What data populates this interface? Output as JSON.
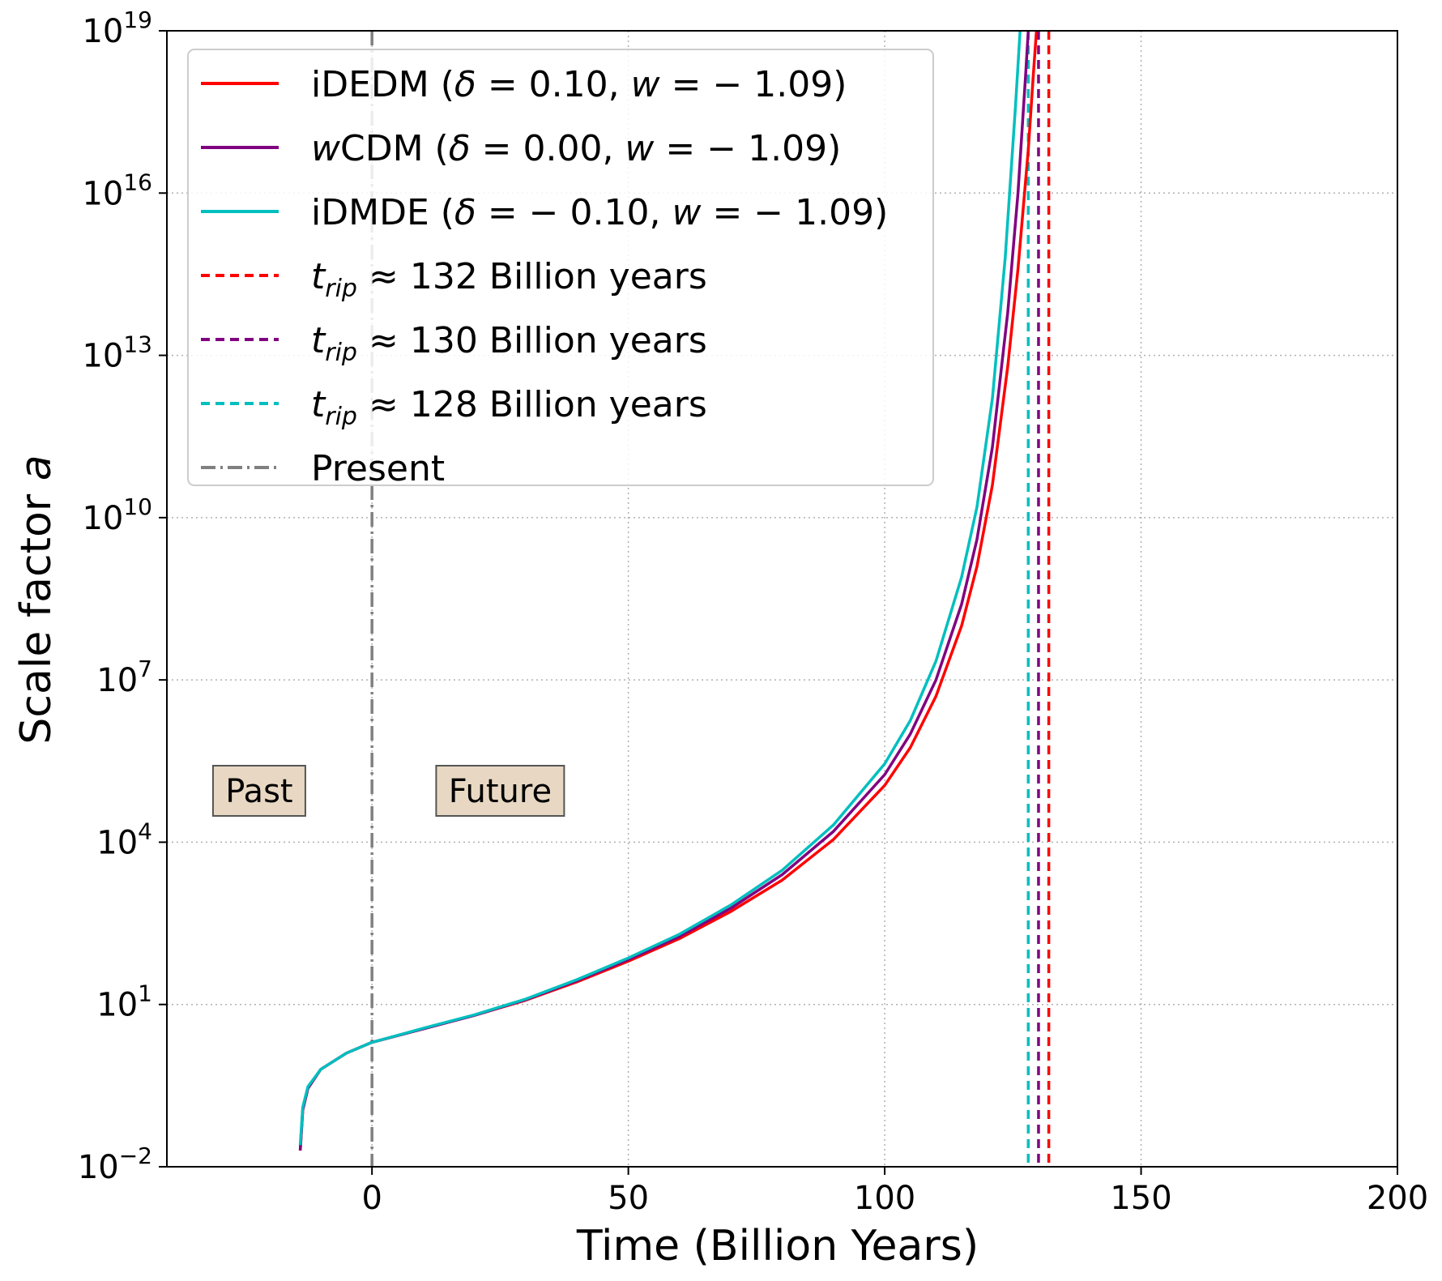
{
  "chart_data": {
    "type": "line",
    "xlabel": "Time (Billion Years)",
    "ylabel_prefix": "Scale factor ",
    "ylabel_var": "a",
    "xlim": [
      -40,
      200
    ],
    "ylim_log10": [
      -2,
      19
    ],
    "xticks": [
      0,
      50,
      100,
      150,
      200
    ],
    "xtick_labels": [
      "0",
      "50",
      "100",
      "150",
      "200"
    ],
    "yticks_log10": [
      -2,
      1,
      4,
      7,
      10,
      13,
      16,
      19
    ],
    "ytick_base": "10",
    "ytick_exponents": [
      "−2",
      "1",
      "4",
      "7",
      "10",
      "13",
      "16",
      "19"
    ],
    "grid": true,
    "legend_position": "upper-left",
    "series": [
      {
        "name": "iDEDM",
        "label_prefix": "iDEDM (",
        "delta_sym": "δ",
        "delta_text": " = 0.10, ",
        "w_sym": "w",
        "w_text": " = − 1.09)",
        "delta": 0.1,
        "w": -1.09,
        "color": "#ff0000",
        "points": [
          [
            -14,
            -1.7
          ],
          [
            -13.5,
            -0.95
          ],
          [
            -12.5,
            -0.55
          ],
          [
            -10,
            -0.2
          ],
          [
            -5,
            0.1
          ],
          [
            0,
            0.3
          ],
          [
            10,
            0.55
          ],
          [
            20,
            0.8
          ],
          [
            30,
            1.08
          ],
          [
            40,
            1.42
          ],
          [
            50,
            1.8
          ],
          [
            60,
            2.22
          ],
          [
            70,
            2.72
          ],
          [
            80,
            3.3
          ],
          [
            90,
            4.05
          ],
          [
            100,
            5.05
          ],
          [
            105,
            5.75
          ],
          [
            110,
            6.7
          ],
          [
            115,
            8.0
          ],
          [
            118,
            9.1
          ],
          [
            121,
            10.6
          ],
          [
            124,
            12.8
          ],
          [
            126,
            14.6
          ],
          [
            128,
            16.8
          ],
          [
            129,
            18.2
          ],
          [
            129.6,
            19
          ]
        ]
      },
      {
        "name": "wCDM",
        "label_prefix": "",
        "delta_sym": "δ",
        "delta_text": " = 0.00, ",
        "w_sym": "w",
        "w_text": " = − 1.09)",
        "label_italic": "w",
        "label_rest": "CDM (",
        "delta": 0.0,
        "w": -1.09,
        "color": "#800080",
        "points": [
          [
            -14,
            -1.7
          ],
          [
            -13.5,
            -0.95
          ],
          [
            -12.5,
            -0.55
          ],
          [
            -10,
            -0.2
          ],
          [
            -5,
            0.1
          ],
          [
            0,
            0.3
          ],
          [
            10,
            0.55
          ],
          [
            20,
            0.8
          ],
          [
            30,
            1.09
          ],
          [
            40,
            1.44
          ],
          [
            50,
            1.83
          ],
          [
            60,
            2.26
          ],
          [
            70,
            2.78
          ],
          [
            80,
            3.4
          ],
          [
            90,
            4.2
          ],
          [
            100,
            5.25
          ],
          [
            105,
            6.0
          ],
          [
            110,
            7.0
          ],
          [
            115,
            8.4
          ],
          [
            118,
            9.6
          ],
          [
            121,
            11.3
          ],
          [
            124,
            13.8
          ],
          [
            126,
            16.0
          ],
          [
            127.5,
            18.2
          ],
          [
            128,
            19
          ]
        ]
      },
      {
        "name": "iDMDE",
        "label_prefix": "iDMDE (",
        "delta_sym": "δ",
        "delta_text": " = − 0.10, ",
        "w_sym": "w",
        "w_text": " = − 1.09)",
        "delta": -0.1,
        "w": -1.09,
        "color": "#00bfbf",
        "points": [
          [
            -14,
            -1.6
          ],
          [
            -13.5,
            -0.9
          ],
          [
            -12.5,
            -0.52
          ],
          [
            -10,
            -0.2
          ],
          [
            -5,
            0.1
          ],
          [
            0,
            0.3
          ],
          [
            10,
            0.56
          ],
          [
            20,
            0.81
          ],
          [
            30,
            1.1
          ],
          [
            40,
            1.46
          ],
          [
            50,
            1.86
          ],
          [
            60,
            2.3
          ],
          [
            70,
            2.84
          ],
          [
            80,
            3.48
          ],
          [
            90,
            4.32
          ],
          [
            100,
            5.45
          ],
          [
            105,
            6.25
          ],
          [
            110,
            7.35
          ],
          [
            115,
            8.9
          ],
          [
            118,
            10.2
          ],
          [
            121,
            12.2
          ],
          [
            123.5,
            14.8
          ],
          [
            125.5,
            17.6
          ],
          [
            126.4,
            19
          ]
        ]
      }
    ],
    "rip_lines": [
      {
        "t": 132,
        "color": "#ff0000",
        "sym": "t",
        "sub": "rip",
        "approx": " ≈ 132",
        "label_rest": " Billion years"
      },
      {
        "t": 130,
        "color": "#800080",
        "sym": "t",
        "sub": "rip",
        "approx": " ≈ 130",
        "label_rest": " Billion years"
      },
      {
        "t": 128,
        "color": "#00bfbf",
        "sym": "t",
        "sub": "rip",
        "approx": " ≈ 128",
        "label_rest": " Billion years"
      }
    ],
    "present_line": {
      "t": 0,
      "color": "#808080",
      "label": "Present"
    },
    "annotations": [
      {
        "text": "Past",
        "x": -22,
        "y_log10": 4.95
      },
      {
        "text": "Future",
        "x": 25,
        "y_log10": 4.95
      }
    ],
    "annotation_fill": "#e8d8c3",
    "grid_color": "#b0b0b0"
  }
}
